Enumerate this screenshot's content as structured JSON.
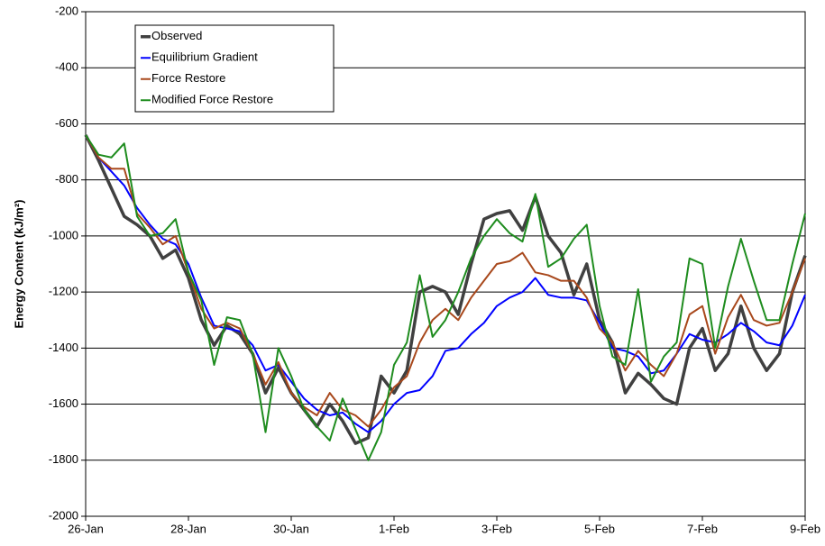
{
  "chart_data": {
    "type": "line",
    "y_label": "Energy Content (kJ/m²)",
    "x": [
      0,
      0.25,
      0.5,
      0.75,
      1,
      1.25,
      1.5,
      1.75,
      2,
      2.25,
      2.5,
      2.75,
      3,
      3.25,
      3.5,
      3.75,
      4,
      4.25,
      4.5,
      4.75,
      5,
      5.25,
      5.5,
      5.75,
      6,
      6.25,
      6.5,
      6.75,
      7,
      7.25,
      7.5,
      7.75,
      8,
      8.25,
      8.5,
      8.75,
      9,
      9.25,
      9.5,
      9.75,
      10,
      10.25,
      10.5,
      10.75,
      11,
      11.25,
      11.5,
      11.75,
      12,
      12.25,
      12.5,
      12.75,
      13,
      13.25,
      13.5,
      13.75,
      14
    ],
    "xlim": [
      0,
      14
    ],
    "xticks": [
      {
        "value": 0,
        "label": "26-Jan"
      },
      {
        "value": 2,
        "label": "28-Jan"
      },
      {
        "value": 4,
        "label": "30-Jan"
      },
      {
        "value": 6,
        "label": "1-Feb"
      },
      {
        "value": 8,
        "label": "3-Feb"
      },
      {
        "value": 10,
        "label": "5-Feb"
      },
      {
        "value": 12,
        "label": "7-Feb"
      },
      {
        "value": 14,
        "label": "9-Feb"
      }
    ],
    "ylim": [
      -2000,
      -200
    ],
    "yticks": [
      -2000,
      -1800,
      -1600,
      -1400,
      -1200,
      -1000,
      -800,
      -600,
      -400,
      -200
    ],
    "grid": true,
    "legend": "upper left",
    "series": [
      {
        "name": "Observed",
        "color": "#404040",
        "line_width": 3.5,
        "values": [
          -640,
          -730,
          -830,
          -930,
          -960,
          -1000,
          -1080,
          -1050,
          -1150,
          -1300,
          -1390,
          -1320,
          -1350,
          -1420,
          -1560,
          -1470,
          -1560,
          -1620,
          -1680,
          -1600,
          -1660,
          -1740,
          -1720,
          -1500,
          -1560,
          -1480,
          -1200,
          -1180,
          -1200,
          -1280,
          -1100,
          -940,
          -920,
          -910,
          -980,
          -860,
          -1000,
          -1060,
          -1210,
          -1100,
          -1300,
          -1380,
          -1560,
          -1490,
          -1530,
          -1580,
          -1600,
          -1400,
          -1330,
          -1480,
          -1420,
          -1250,
          -1400,
          -1480,
          -1420,
          -1200,
          -1070
        ]
      },
      {
        "name": "Equilibrium Gradient",
        "color": "#0000ff",
        "line_width": 2,
        "values": [
          -640,
          -720,
          -770,
          -820,
          -900,
          -960,
          -1010,
          -1030,
          -1100,
          -1220,
          -1320,
          -1330,
          -1340,
          -1390,
          -1480,
          -1460,
          -1520,
          -1580,
          -1620,
          -1640,
          -1630,
          -1670,
          -1700,
          -1660,
          -1600,
          -1560,
          -1550,
          -1500,
          -1410,
          -1400,
          -1350,
          -1310,
          -1250,
          -1220,
          -1200,
          -1150,
          -1210,
          -1220,
          -1220,
          -1230,
          -1310,
          -1400,
          -1410,
          -1430,
          -1490,
          -1480,
          -1420,
          -1350,
          -1370,
          -1380,
          -1350,
          -1310,
          -1340,
          -1380,
          -1390,
          -1320,
          -1210
        ]
      },
      {
        "name": "Force Restore",
        "color": "#a8481c",
        "line_width": 2,
        "values": [
          -640,
          -720,
          -760,
          -760,
          -920,
          -970,
          -1030,
          -1000,
          -1130,
          -1260,
          -1330,
          -1310,
          -1330,
          -1420,
          -1530,
          -1450,
          -1560,
          -1610,
          -1640,
          -1560,
          -1620,
          -1640,
          -1680,
          -1620,
          -1540,
          -1500,
          -1380,
          -1300,
          -1260,
          -1300,
          -1220,
          -1160,
          -1100,
          -1090,
          -1060,
          -1130,
          -1140,
          -1160,
          -1160,
          -1220,
          -1330,
          -1380,
          -1480,
          -1410,
          -1460,
          -1500,
          -1420,
          -1280,
          -1250,
          -1420,
          -1290,
          -1210,
          -1300,
          -1320,
          -1310,
          -1200,
          -1080
        ]
      },
      {
        "name": "Modified Force Restore",
        "color": "#1e8c1e",
        "line_width": 2,
        "values": [
          -640,
          -710,
          -720,
          -670,
          -930,
          -1000,
          -990,
          -940,
          -1130,
          -1230,
          -1460,
          -1290,
          -1300,
          -1420,
          -1700,
          -1400,
          -1500,
          -1620,
          -1680,
          -1730,
          -1580,
          -1690,
          -1800,
          -1700,
          -1460,
          -1380,
          -1140,
          -1360,
          -1300,
          -1200,
          -1080,
          -1000,
          -940,
          -990,
          -1020,
          -850,
          -1110,
          -1080,
          -1010,
          -960,
          -1250,
          -1430,
          -1460,
          -1190,
          -1520,
          -1430,
          -1380,
          -1080,
          -1100,
          -1400,
          -1180,
          -1010,
          -1160,
          -1300,
          -1300,
          -1100,
          -920
        ]
      }
    ]
  }
}
